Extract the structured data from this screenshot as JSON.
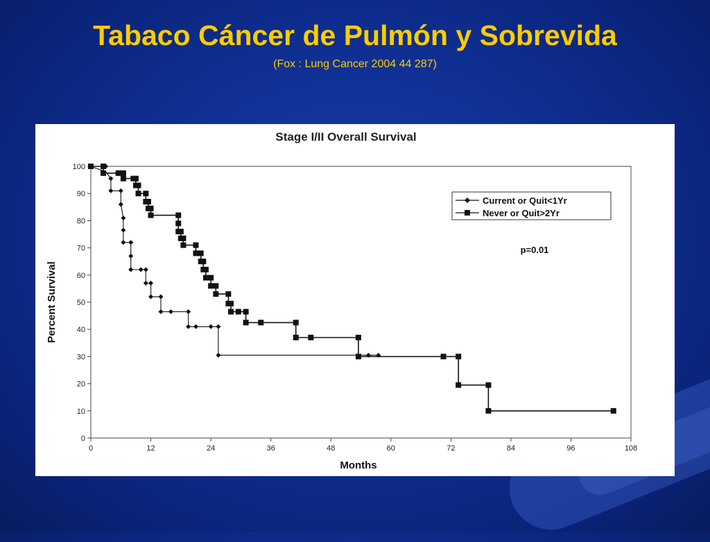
{
  "slide": {
    "title": "Tabaco Cáncer de Pulmón y Sobrevida",
    "subtitle": "(Fox :  Lung Cancer 2004  44 287)"
  },
  "colors": {
    "title": "#ffcc00",
    "background": "#0f2f93",
    "panel": "#ffffff",
    "series": "#111111"
  },
  "chart_data": {
    "type": "line",
    "title": "Stage I/II Overall Survival",
    "xlabel": "Months",
    "ylabel": "Percent Survival",
    "xlim": [
      0,
      108
    ],
    "ylim": [
      0,
      100
    ],
    "xticks": [
      0,
      12,
      24,
      36,
      48,
      60,
      72,
      84,
      96,
      108
    ],
    "yticks": [
      0,
      10,
      20,
      30,
      40,
      50,
      60,
      70,
      80,
      90,
      100
    ],
    "grid": false,
    "legend_position": "top-right",
    "annotation": "p=0.01",
    "series": [
      {
        "name": "Current or Quit<1Yr",
        "marker": "diamond",
        "steps": [
          [
            0,
            100
          ],
          [
            3,
            98
          ],
          [
            4,
            95.5
          ],
          [
            4,
            91
          ],
          [
            6,
            91
          ],
          [
            6,
            86
          ],
          [
            6.5,
            81
          ],
          [
            6.5,
            76.5
          ],
          [
            6.5,
            72
          ],
          [
            8,
            72
          ],
          [
            8,
            67
          ],
          [
            8,
            62
          ],
          [
            10,
            62
          ],
          [
            11,
            62
          ],
          [
            11,
            57
          ],
          [
            12,
            57
          ],
          [
            12,
            52
          ],
          [
            14,
            52
          ],
          [
            14,
            46.5
          ],
          [
            16,
            46.5
          ],
          [
            19.5,
            46.5
          ],
          [
            19.5,
            41
          ],
          [
            21,
            41
          ],
          [
            24,
            41
          ],
          [
            25.5,
            41
          ],
          [
            25.5,
            30.5
          ],
          [
            54,
            30.5
          ],
          [
            55.5,
            30.5
          ],
          [
            57.5,
            30.5
          ]
        ],
        "points": [
          [
            3,
            100
          ],
          [
            4,
            95.5
          ],
          [
            4,
            91
          ],
          [
            6,
            91
          ],
          [
            6,
            86
          ],
          [
            6.5,
            81
          ],
          [
            6.5,
            76.5
          ],
          [
            6.5,
            72
          ],
          [
            8,
            72
          ],
          [
            8,
            67
          ],
          [
            8,
            62
          ],
          [
            10,
            62
          ],
          [
            11,
            62
          ],
          [
            11,
            57
          ],
          [
            12,
            57
          ],
          [
            12,
            52
          ],
          [
            14,
            52
          ],
          [
            14,
            46.5
          ],
          [
            16,
            46.5
          ],
          [
            19.5,
            46.5
          ],
          [
            19.5,
            41
          ],
          [
            21,
            41
          ],
          [
            24,
            41
          ],
          [
            25.5,
            41
          ],
          [
            25.5,
            30.5
          ],
          [
            55.5,
            30.5
          ],
          [
            57.5,
            30.5
          ]
        ]
      },
      {
        "name": "Never or Quit>2Yr",
        "marker": "square",
        "steps": [
          [
            0,
            100
          ],
          [
            2.5,
            100
          ],
          [
            2.5,
            97.5
          ],
          [
            5.5,
            97.5
          ],
          [
            6.5,
            97.5
          ],
          [
            6.5,
            95.5
          ],
          [
            8.5,
            95.5
          ],
          [
            9,
            95.5
          ],
          [
            9,
            93
          ],
          [
            9.5,
            93
          ],
          [
            9.5,
            90
          ],
          [
            11,
            90
          ],
          [
            11,
            87
          ],
          [
            11.5,
            87
          ],
          [
            11.5,
            84.5
          ],
          [
            12,
            84.5
          ],
          [
            12,
            82
          ],
          [
            17.5,
            82
          ],
          [
            17.5,
            79
          ],
          [
            17.5,
            76
          ],
          [
            18,
            76
          ],
          [
            18,
            73.5
          ],
          [
            18.5,
            73.5
          ],
          [
            18.5,
            71
          ],
          [
            21,
            71
          ],
          [
            21,
            68
          ],
          [
            22,
            68
          ],
          [
            22,
            65
          ],
          [
            22.5,
            65
          ],
          [
            22.5,
            62
          ],
          [
            23,
            62
          ],
          [
            23,
            59
          ],
          [
            24,
            59
          ],
          [
            24,
            56
          ],
          [
            25,
            56
          ],
          [
            25,
            53
          ],
          [
            27.5,
            53
          ],
          [
            27.5,
            49.5
          ],
          [
            28,
            49.5
          ],
          [
            28,
            46.5
          ],
          [
            29.5,
            46.5
          ],
          [
            31,
            46.5
          ],
          [
            31,
            42.5
          ],
          [
            34,
            42.5
          ],
          [
            41,
            42.5
          ],
          [
            41,
            37
          ],
          [
            44,
            37
          ],
          [
            53.5,
            37
          ],
          [
            53.5,
            30
          ],
          [
            70.5,
            30
          ],
          [
            73.5,
            30
          ],
          [
            73.5,
            19.5
          ],
          [
            79.5,
            19.5
          ],
          [
            79.5,
            10
          ],
          [
            104.5,
            10
          ]
        ],
        "points": [
          [
            0,
            100
          ],
          [
            2.5,
            100
          ],
          [
            2.5,
            97.5
          ],
          [
            5.5,
            97.5
          ],
          [
            6.5,
            97.5
          ],
          [
            6.5,
            95.5
          ],
          [
            8.5,
            95.5
          ],
          [
            9,
            95.5
          ],
          [
            9,
            93
          ],
          [
            9.5,
            93
          ],
          [
            9.5,
            90
          ],
          [
            11,
            90
          ],
          [
            11,
            87
          ],
          [
            11.5,
            87
          ],
          [
            11.5,
            84.5
          ],
          [
            12,
            84.5
          ],
          [
            12,
            82
          ],
          [
            17.5,
            82
          ],
          [
            17.5,
            79
          ],
          [
            17.5,
            76
          ],
          [
            18,
            76
          ],
          [
            18,
            73.5
          ],
          [
            18.5,
            73.5
          ],
          [
            18.5,
            71
          ],
          [
            21,
            71
          ],
          [
            21,
            68
          ],
          [
            22,
            68
          ],
          [
            22,
            65
          ],
          [
            22.5,
            65
          ],
          [
            22.5,
            62
          ],
          [
            23,
            62
          ],
          [
            23,
            59
          ],
          [
            24,
            59
          ],
          [
            24,
            56
          ],
          [
            25,
            56
          ],
          [
            25,
            53
          ],
          [
            27.5,
            53
          ],
          [
            27.5,
            49.5
          ],
          [
            28,
            49.5
          ],
          [
            28,
            46.5
          ],
          [
            29.5,
            46.5
          ],
          [
            31,
            46.5
          ],
          [
            31,
            42.5
          ],
          [
            34,
            42.5
          ],
          [
            41,
            42.5
          ],
          [
            41,
            37
          ],
          [
            44,
            37
          ],
          [
            53.5,
            37
          ],
          [
            53.5,
            30
          ],
          [
            70.5,
            30
          ],
          [
            73.5,
            30
          ],
          [
            73.5,
            19.5
          ],
          [
            79.5,
            19.5
          ],
          [
            79.5,
            10
          ],
          [
            104.5,
            10
          ]
        ]
      }
    ]
  }
}
